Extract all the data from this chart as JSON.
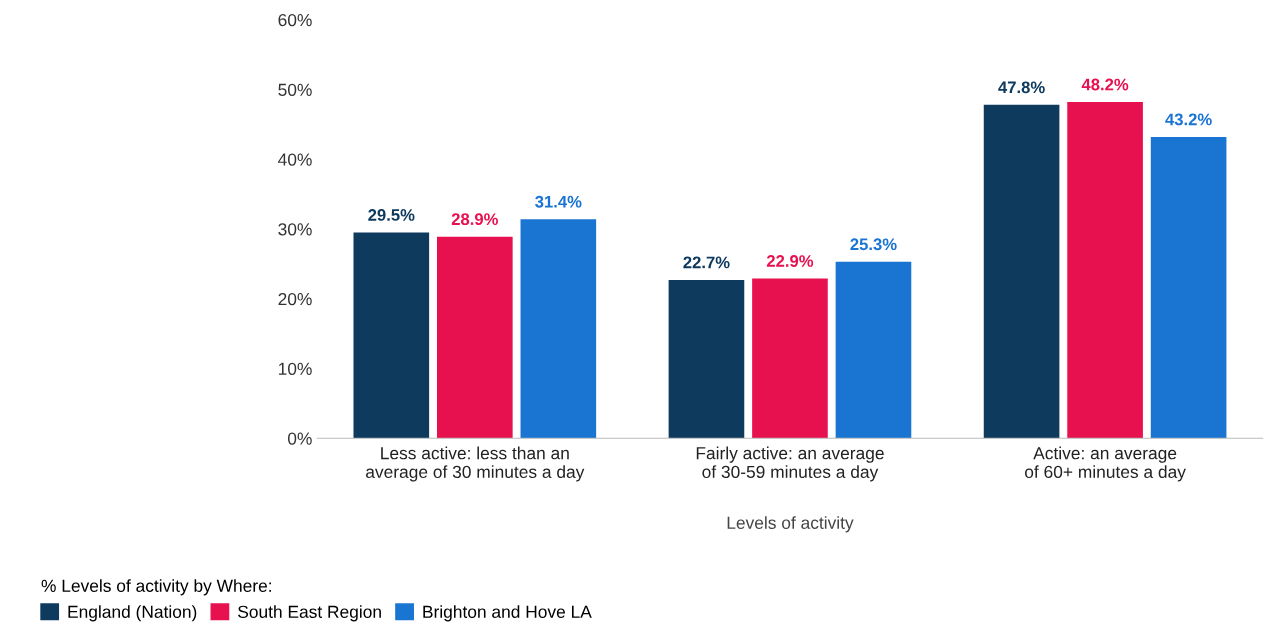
{
  "chart_data": {
    "type": "bar",
    "xlabel": "Levels of activity",
    "legend_title": "% Levels of activity by Where:",
    "categories": [
      "Less active: less than an average of 30 minutes a day",
      "Fairly active: an average of 30-59 minutes a day",
      "Active: an average of 60+ minutes a day"
    ],
    "series": [
      {
        "name": "England (Nation)",
        "color": "#0e3a5e",
        "values": [
          29.5,
          22.7,
          47.8
        ],
        "value_labels": [
          "29.5%",
          "22.7%",
          "47.8%"
        ]
      },
      {
        "name": "South East Region",
        "color": "#e8114f",
        "values": [
          28.9,
          22.9,
          48.2
        ],
        "value_labels": [
          "28.9%",
          "22.9%",
          "48.2%"
        ]
      },
      {
        "name": "Brighton and Hove LA",
        "color": "#1a74d2",
        "values": [
          31.4,
          25.3,
          43.2
        ],
        "value_labels": [
          "31.4%",
          "25.3%",
          "43.2%"
        ]
      }
    ],
    "ylim": [
      0,
      60
    ],
    "yticks": [
      {
        "value": 0,
        "label": "0%"
      },
      {
        "value": 10,
        "label": "10%"
      },
      {
        "value": 20,
        "label": "20%"
      },
      {
        "value": 30,
        "label": "30%"
      },
      {
        "value": 40,
        "label": "40%"
      },
      {
        "value": 50,
        "label": "50%"
      },
      {
        "value": 60,
        "label": "60%"
      }
    ],
    "grid": false,
    "legend": "bottom left"
  }
}
